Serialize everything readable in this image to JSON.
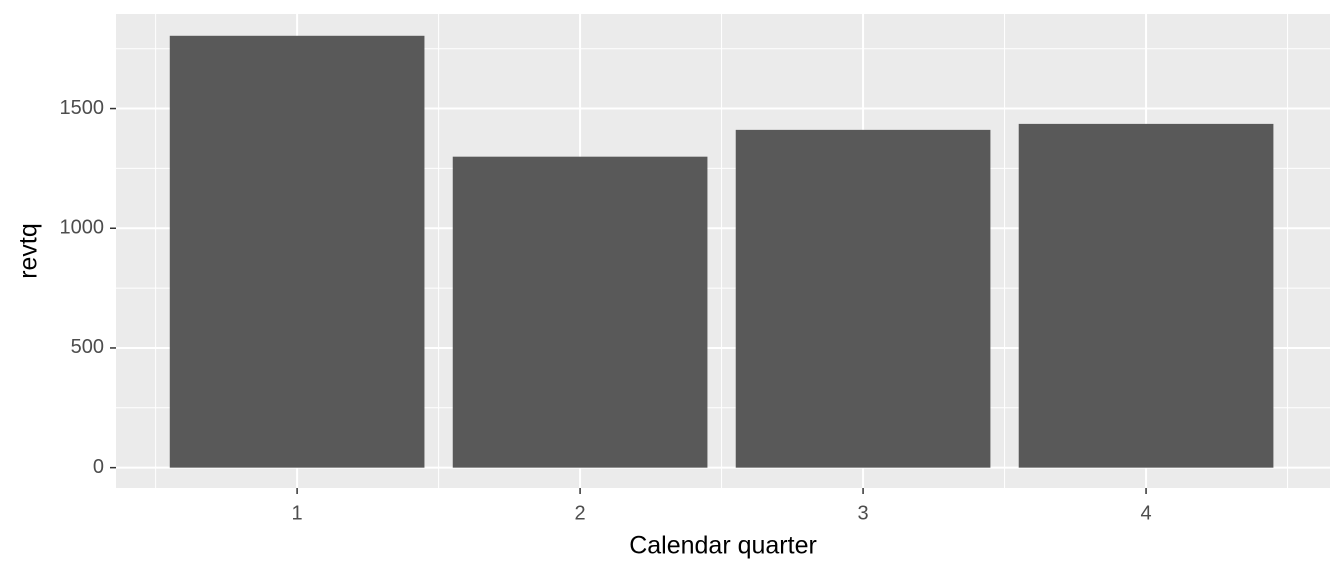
{
  "chart_data": {
    "type": "bar",
    "x_label": "Calendar quarter",
    "y_label": "revtq",
    "x": [
      1,
      2,
      3,
      4
    ],
    "values": [
      1804,
      1299,
      1411,
      1436
    ],
    "color": "#595959",
    "xlim": [
      0.36,
      4.65
    ],
    "xticks": [
      1,
      2,
      3,
      4
    ],
    "ylim": [
      -85,
      1895
    ],
    "yticks": [
      0,
      500,
      1000,
      1500
    ],
    "grid": true
  }
}
